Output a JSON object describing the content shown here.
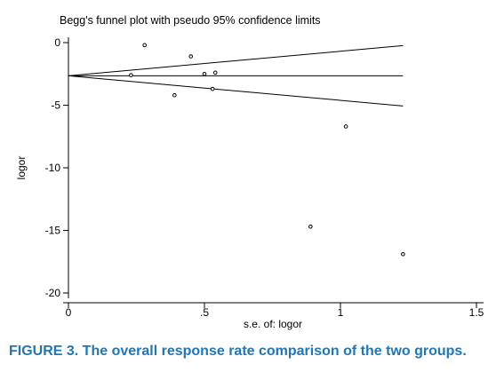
{
  "figure": {
    "caption": "FIGURE 3. The overall response rate comparison of the two groups.",
    "colors": {
      "caption": "#1f76b8",
      "ink": "#000000"
    }
  },
  "chart_data": {
    "type": "scatter",
    "title": "Begg's funnel plot with pseudo 95% confidence limits",
    "xlabel": "s.e. of: logor",
    "ylabel": "logor",
    "xlim": [
      0,
      1.5
    ],
    "ylim": [
      -20,
      0
    ],
    "x_ticks": [
      {
        "value": 0,
        "label": "0"
      },
      {
        "value": 0.5,
        "label": ".5"
      },
      {
        "value": 1,
        "label": "1"
      },
      {
        "value": 1.5,
        "label": "1.5"
      }
    ],
    "y_ticks": [
      {
        "value": 0,
        "label": "0"
      },
      {
        "value": -5,
        "label": "-5"
      },
      {
        "value": -10,
        "label": "-10"
      },
      {
        "value": -15,
        "label": "-15"
      },
      {
        "value": -20,
        "label": "-20"
      }
    ],
    "grid": false,
    "pooled_estimate": -2.65,
    "funnel_x_range": [
      0,
      1.23
    ],
    "points": [
      {
        "x": 0.28,
        "y": -0.2
      },
      {
        "x": 0.23,
        "y": -2.6
      },
      {
        "x": 0.45,
        "y": -1.1
      },
      {
        "x": 0.39,
        "y": -4.2
      },
      {
        "x": 0.5,
        "y": -2.5
      },
      {
        "x": 0.54,
        "y": -2.4
      },
      {
        "x": 0.53,
        "y": -3.7
      },
      {
        "x": 1.02,
        "y": -6.7
      },
      {
        "x": 0.89,
        "y": -14.7
      },
      {
        "x": 1.23,
        "y": -16.9
      }
    ]
  }
}
